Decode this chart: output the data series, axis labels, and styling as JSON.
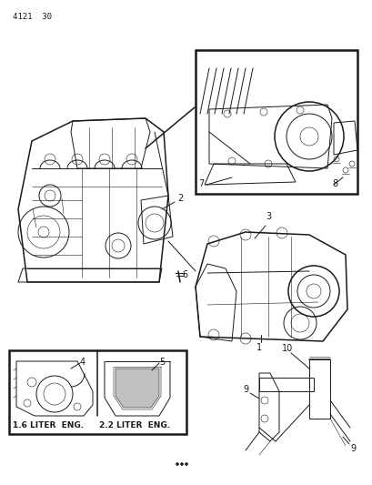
{
  "bg_color": "#ffffff",
  "line_color": "#1a1a1a",
  "fig_width": 4.1,
  "fig_height": 5.33,
  "dpi": 100,
  "page_ref": "4121  30",
  "labels": {
    "item1": "1",
    "item2": "2",
    "item3": "3",
    "item4": "4",
    "item5": "5",
    "item6": "6",
    "item7": "7",
    "item8": "8",
    "item9a": "9",
    "item9b": "9",
    "item10": "10",
    "eng1": "1.6 LITER  ENG.",
    "eng2": "2.2 LITER  ENG."
  }
}
